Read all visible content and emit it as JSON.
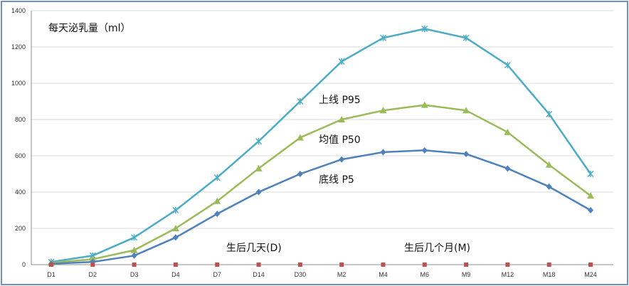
{
  "chart_data": {
    "type": "line",
    "title": "每天泌乳量（ml）",
    "categories": [
      "D1",
      "D2",
      "D3",
      "D4",
      "D7",
      "D14",
      "D30",
      "M2",
      "M4",
      "M6",
      "M9",
      "M12",
      "M18",
      "M24"
    ],
    "ylim": [
      0,
      1400
    ],
    "yticks": [
      0,
      200,
      400,
      600,
      800,
      1000,
      1200,
      1400
    ],
    "grid": "horizontal",
    "series": [
      {
        "name": "上线 P95",
        "color": "#4bacc6",
        "marker": "x",
        "values": [
          15,
          50,
          150,
          300,
          480,
          680,
          900,
          1120,
          1250,
          1300,
          1250,
          1100,
          830,
          500
        ]
      },
      {
        "name": "均值 P50",
        "color": "#9bbb59",
        "marker": "triangle",
        "values": [
          10,
          30,
          80,
          200,
          350,
          530,
          700,
          800,
          850,
          880,
          850,
          730,
          550,
          380
        ]
      },
      {
        "name": "底线 P5",
        "color": "#4f81bd",
        "marker": "diamond",
        "values": [
          5,
          15,
          50,
          150,
          280,
          400,
          500,
          580,
          620,
          630,
          610,
          530,
          430,
          300
        ]
      }
    ],
    "baseline_marker_color": "#c0504d",
    "annotations": [
      {
        "text": "生后几天(D)"
      },
      {
        "text": "生后几个月(M)"
      }
    ]
  }
}
